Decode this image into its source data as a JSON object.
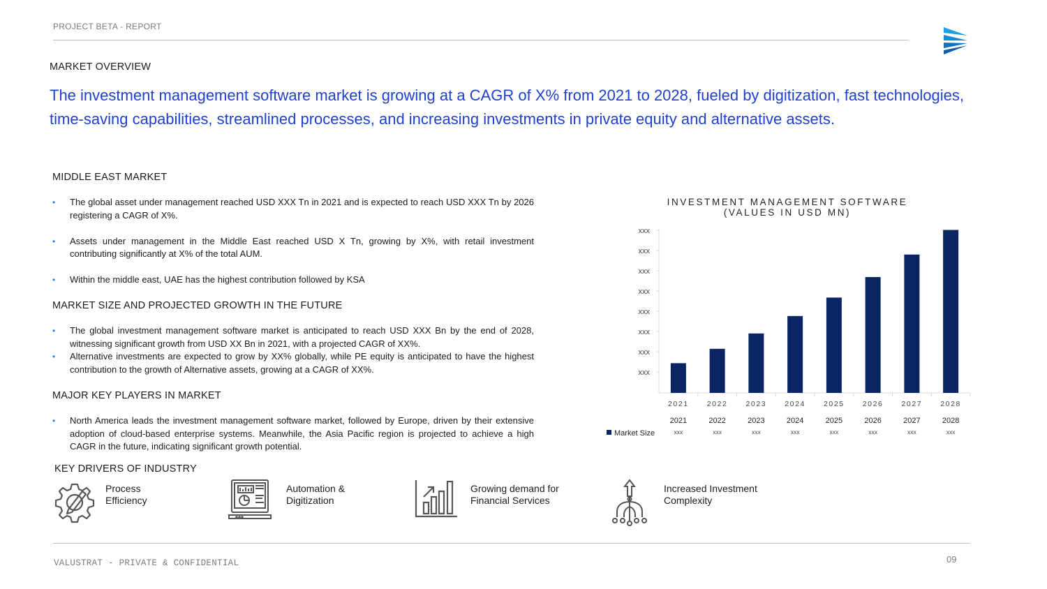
{
  "header": {
    "label": "PROJECT BETA - REPORT"
  },
  "market_overview": {
    "heading": "MARKET OVERVIEW",
    "headline": "The investment management software market is growing at a CAGR of X% from 2021 to 2028, fueled by digitization, fast technologies, time-saving capabilities, streamlined processes, and increasing investments in private equity and alternative assets."
  },
  "middle_east": {
    "heading": "MIDDLE EAST MARKET",
    "bullets": [
      "The global asset under management reached USD XXX Tn in 2021 and is expected to reach USD XXX Tn by 2026 registering a CAGR of X%.",
      "Assets under management in the Middle East reached USD X Tn, growing by X%, with retail investment contributing significantly at X% of the total AUM.",
      "Within the middle east, UAE has the highest contribution followed by KSA"
    ]
  },
  "market_size": {
    "heading": "MARKET SIZE AND PROJECTED GROWTH IN THE FUTURE",
    "bullets": [
      "The global investment management software market is anticipated to reach USD XXX Bn by the end of 2028, witnessing significant growth from USD XX Bn in 2021, with a projected CAGR of XX%.",
      "Alternative investments are expected to grow by XX% globally, while PE equity is anticipated to have the highest contribution to the growth of Alternative assets, growing at a CAGR of XX%."
    ]
  },
  "key_players": {
    "heading": "MAJOR KEY PLAYERS IN MARKET",
    "bullets": [
      "North America leads the investment management software market, followed by Europe, driven by their extensive adoption of cloud-based enterprise systems. Meanwhile, the Asia Pacific region is projected to achieve a high CAGR in the future, indicating significant growth potential."
    ]
  },
  "drivers": {
    "heading": "KEY DRIVERS OF INDUSTRY",
    "items": [
      {
        "label_line1": "Process",
        "label_line2": "Efficiency",
        "icon": "gear-pen-icon"
      },
      {
        "label_line1": "Automation &",
        "label_line2": "Digitization",
        "icon": "laptop-dashboard-icon"
      },
      {
        "label_line1": "Growing demand for",
        "label_line2": "Financial Services",
        "icon": "growth-chart-icon"
      },
      {
        "label_line1": "Increased Investment",
        "label_line2": "Complexity",
        "icon": "network-tree-icon"
      }
    ]
  },
  "chart_data": {
    "type": "bar",
    "title_line1": "INVESTMENT MANAGEMENT SOFTWARE",
    "title_line2": "(VALUES IN USD MN)",
    "categories": [
      "2021",
      "2022",
      "2023",
      "2024",
      "2025",
      "2026",
      "2027",
      "2028"
    ],
    "series": [
      {
        "name": "Market Size",
        "values": [
          14.5,
          21.5,
          29,
          37.5,
          46.5,
          56.5,
          67.5,
          79.5
        ]
      }
    ],
    "y_tick_labels": [
      "xxx",
      "xxx",
      "xxx",
      "xxx",
      "xxx",
      "xxx",
      "xxx",
      "xxx"
    ],
    "ylim": [
      0,
      80
    ],
    "table_values": [
      "xxx",
      "xxx",
      "xxx",
      "xxx",
      "xxx",
      "xxx",
      "xxx",
      "xxx"
    ],
    "bar_color": "#0b2464",
    "legend": "bottom-left data table",
    "grid": false
  },
  "footer": {
    "label": "VALUSTRAT - PRIVATE & CONFIDENTIAL",
    "page": "09"
  },
  "colors": {
    "accent_blue": "#1f3fcf",
    "bullet_blue": "#2a7bd0",
    "bar_navy": "#0b2464"
  }
}
